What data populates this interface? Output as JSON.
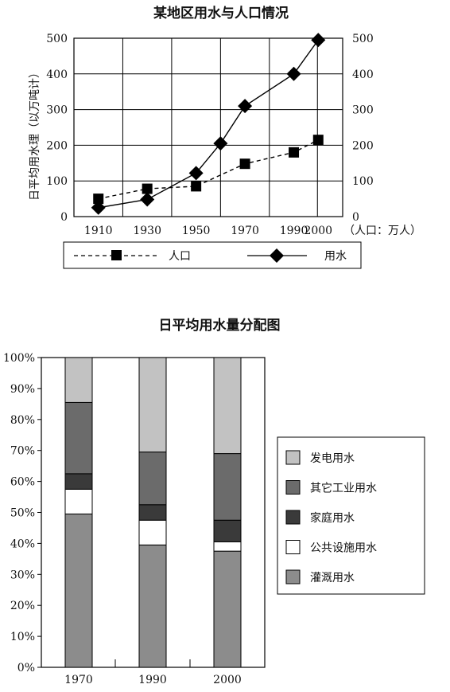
{
  "chart_data": [
    {
      "type": "line",
      "title": "某地区用水与人口情况",
      "ylabel": "日平均用水理（以万吨计）",
      "x_unit_label": "（人口：万人）",
      "x": [
        1910,
        1930,
        1950,
        1970,
        1990,
        2000
      ],
      "xlim": [
        1900,
        2010
      ],
      "ylim": [
        0,
        500
      ],
      "yticks": [
        0,
        100,
        200,
        300,
        400,
        500
      ],
      "grid": true,
      "legend_position": "bottom",
      "series": [
        {
          "name": "人口",
          "style": "dashed",
          "marker": "square",
          "points": [
            {
              "x": 1910,
              "y": 50
            },
            {
              "x": 1930,
              "y": 78
            },
            {
              "x": 1950,
              "y": 85
            },
            {
              "x": 1970,
              "y": 148
            },
            {
              "x": 1990,
              "y": 180
            },
            {
              "x": 2000,
              "y": 215
            }
          ]
        },
        {
          "name": "用水",
          "style": "solid",
          "marker": "diamond",
          "points": [
            {
              "x": 1910,
              "y": 25
            },
            {
              "x": 1930,
              "y": 48
            },
            {
              "x": 1950,
              "y": 122
            },
            {
              "x": 1960,
              "y": 205
            },
            {
              "x": 1970,
              "y": 310
            },
            {
              "x": 1990,
              "y": 400
            },
            {
              "x": 2000,
              "y": 495
            }
          ]
        }
      ]
    },
    {
      "type": "bar",
      "stacked": true,
      "title": "日平均用水量分配图",
      "categories": [
        "1970",
        "1990",
        "2000"
      ],
      "ylim": [
        0,
        100
      ],
      "yticks": [
        "0%",
        "10%",
        "20%",
        "30%",
        "40%",
        "50%",
        "60%",
        "70%",
        "80%",
        "90%",
        "100%"
      ],
      "legend_position": "right",
      "series": [
        {
          "name": "灌溉用水",
          "color": "#8c8c8c",
          "values": [
            49.5,
            39.5,
            37.5
          ]
        },
        {
          "name": "公共设施用水",
          "color": "#ffffff",
          "values": [
            8,
            8,
            3
          ]
        },
        {
          "name": "家庭用水",
          "color": "#3a3a3a",
          "values": [
            5,
            5,
            7
          ]
        },
        {
          "name": "其它工业用水",
          "color": "#6b6b6b",
          "values": [
            23,
            17,
            21.5
          ]
        },
        {
          "name": "发电用水",
          "color": "#c2c2c2",
          "values": [
            14.5,
            30.5,
            31
          ]
        }
      ],
      "legend_order": [
        "发电用水",
        "其它工业用水",
        "家庭用水",
        "公共设施用水",
        "灌溉用水"
      ]
    }
  ]
}
